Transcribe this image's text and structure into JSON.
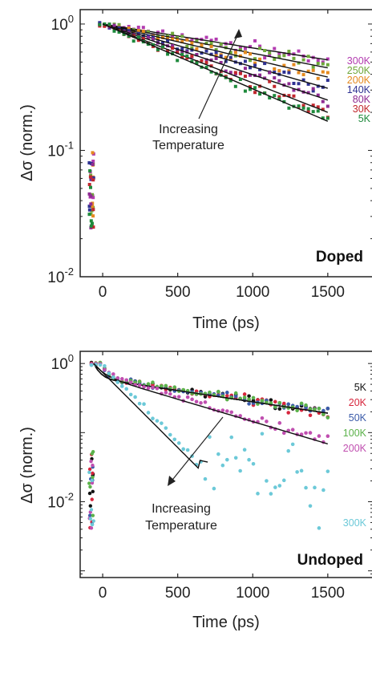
{
  "chart_data": [
    {
      "type": "scatter",
      "title": "",
      "xlabel": "Time (ps)",
      "ylabel": "Δσ (norm.)",
      "xlim": [
        -150,
        1800
      ],
      "ylim": [
        0.01,
        1.3
      ],
      "yscale": "log",
      "xticks": [
        0,
        500,
        1000,
        1500
      ],
      "xticklabels": [
        "0",
        "500",
        "1000",
        "1500"
      ],
      "yticks": [
        1,
        0.1,
        0.01
      ],
      "yticklabels": [
        {
          "base": "10",
          "exp": "0"
        },
        {
          "base": "10",
          "exp": "-1"
        },
        {
          "base": "10",
          "exp": "-2"
        }
      ],
      "panel_label": "Doped",
      "annotation": {
        "lines": [
          "Increasing",
          "Temperature"
        ],
        "arrow_direction": "up-right"
      },
      "legend_placement": "right",
      "fit_lines": true,
      "series": [
        {
          "name": "300K",
          "color": "#b23bb0",
          "end_value": 0.52
        },
        {
          "name": "250K",
          "color": "#6fa83a",
          "end_value": 0.45
        },
        {
          "name": "200K",
          "color": "#e58a1f",
          "end_value": 0.38
        },
        {
          "name": "140K",
          "color": "#2e3192",
          "end_value": 0.31
        },
        {
          "name": "80K",
          "color": "#8e2b92",
          "end_value": 0.25
        },
        {
          "name": "30K",
          "color": "#c1272d",
          "end_value": 0.2
        },
        {
          "name": "5K",
          "color": "#1e8a3c",
          "end_value": 0.17
        }
      ],
      "pre_zero_range": [
        0.012,
        0.1
      ]
    },
    {
      "type": "scatter",
      "title": "",
      "xlabel": "Time (ps)",
      "ylabel": "Δσ (norm.)",
      "xlim": [
        -150,
        1800
      ],
      "ylim": [
        0.0008,
        1.5
      ],
      "yscale": "log",
      "xticks": [
        0,
        500,
        1000,
        1500
      ],
      "xticklabels": [
        "0",
        "500",
        "1000",
        "1500"
      ],
      "yticks": [
        1,
        0.01
      ],
      "yticklabels": [
        {
          "base": "10",
          "exp": "0"
        },
        {
          "base": "10",
          "exp": "-2"
        }
      ],
      "panel_label": "Undoped",
      "annotation": {
        "lines": [
          "Increasing",
          "Temperature"
        ],
        "arrow_direction": "down-left"
      },
      "legend_placement": "right",
      "fit_lines": true,
      "series": [
        {
          "name": "5K",
          "color": "#111111",
          "end_value": 0.2
        },
        {
          "name": "20K",
          "color": "#d7263d",
          "end_value": 0.2
        },
        {
          "name": "50K",
          "color": "#3b5ba9",
          "end_value": 0.2
        },
        {
          "name": "100K",
          "color": "#5bb24a",
          "end_value": 0.2
        },
        {
          "name": "200K",
          "color": "#c04fb0",
          "end_value": 0.075
        },
        {
          "name": "300K",
          "color": "#6cc9d8",
          "end_value": 0.015
        }
      ],
      "pre_zero_range": [
        0.0015,
        0.06
      ]
    }
  ]
}
